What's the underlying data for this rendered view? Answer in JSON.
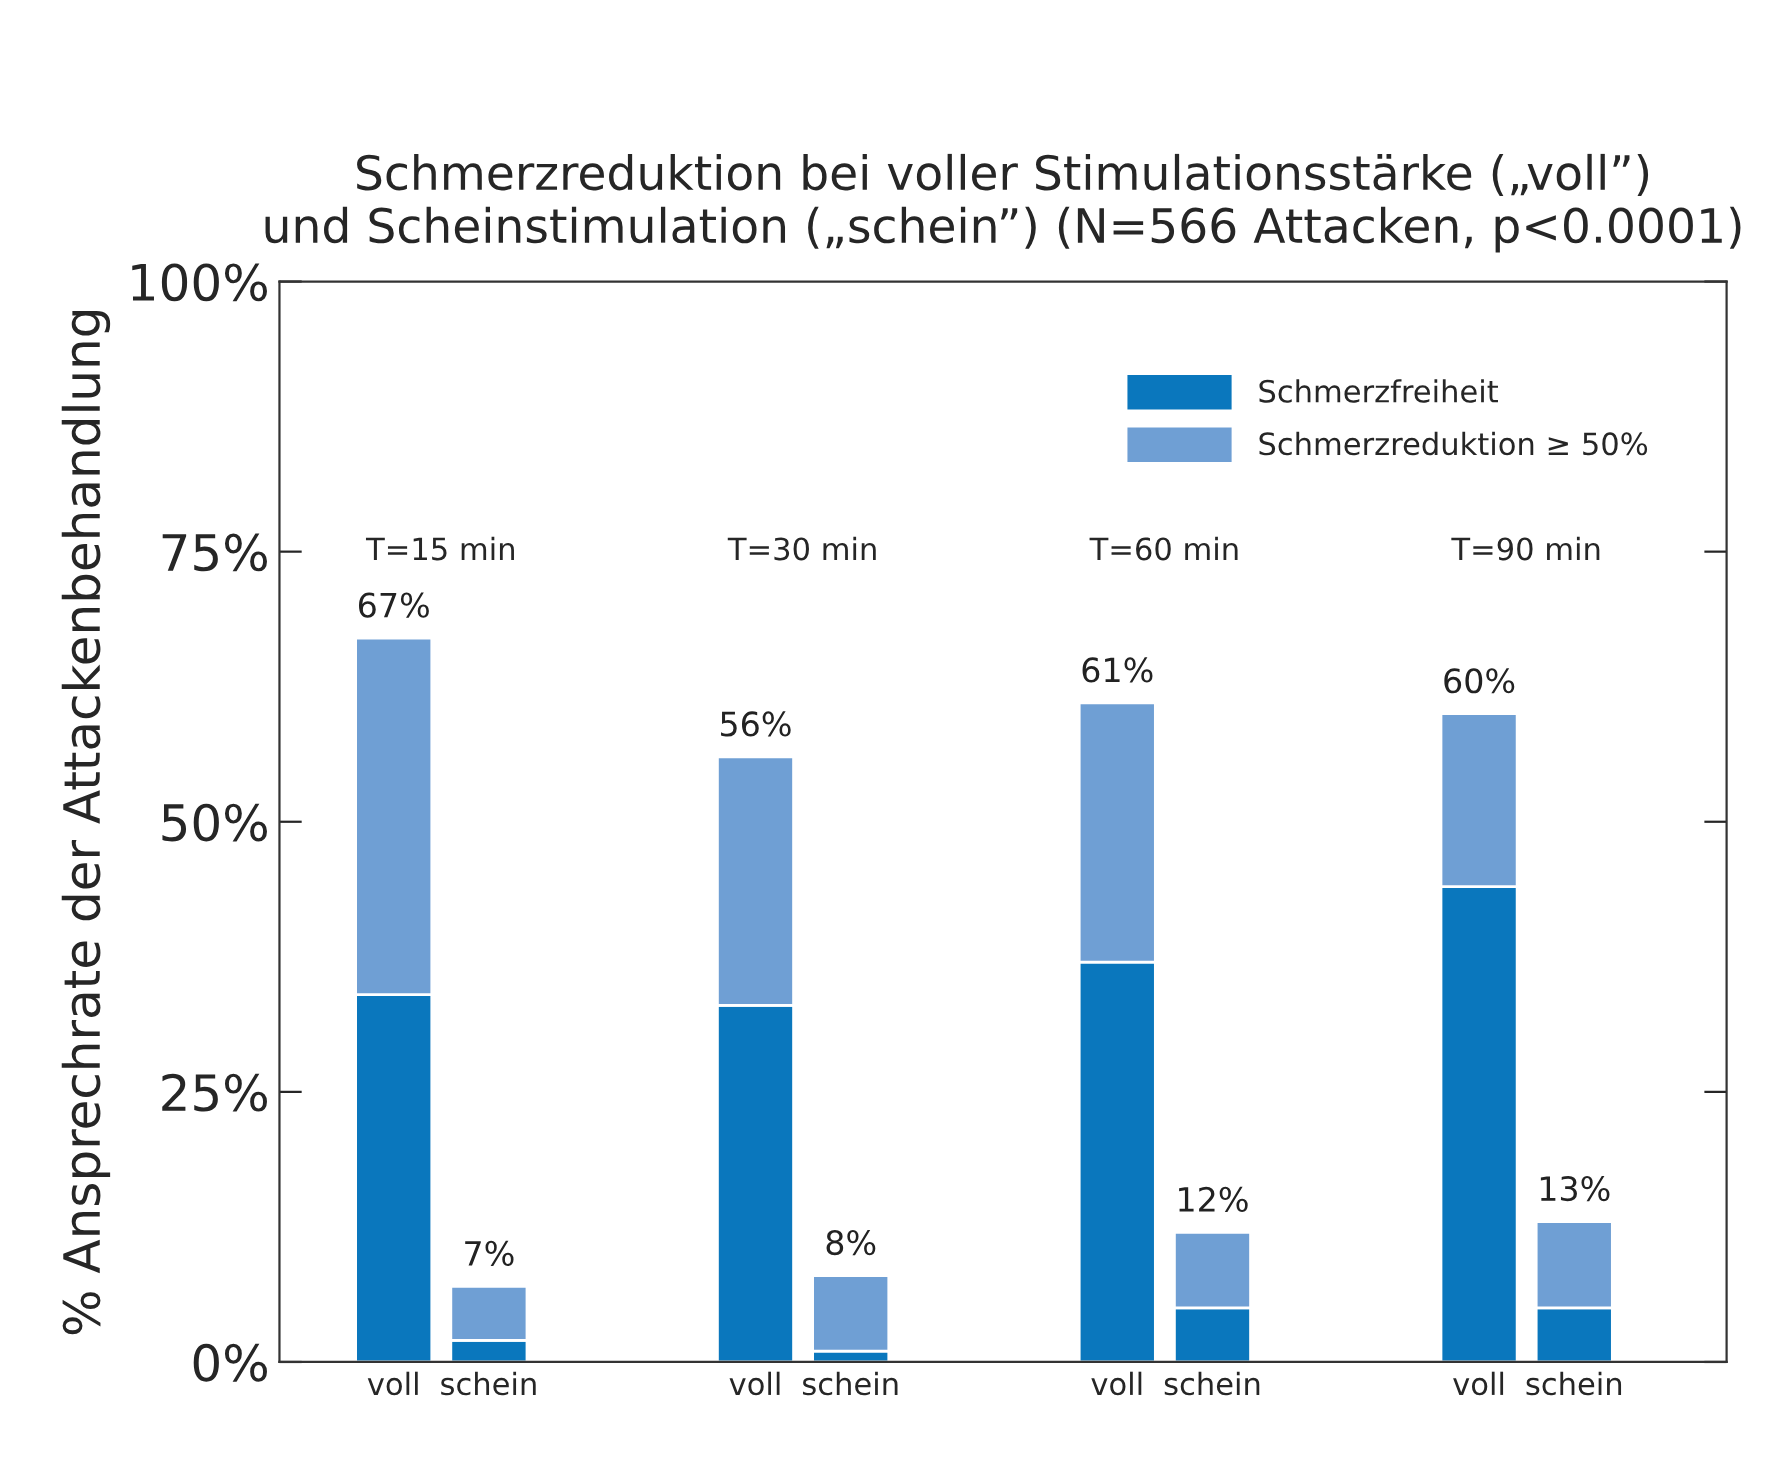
{
  "chart_data": {
    "type": "bar",
    "stacked": true,
    "title": "Schmerzreduktion bei voller Stimulationsstärke („voll”)\nund Scheinstimulation („schein”) (N=566 Attacken, p<0.0001)",
    "ylabel": "% Ansprechrate der Attackenbehandlung",
    "categories": [
      "voll",
      "schein",
      "voll",
      "schein",
      "voll",
      "schein",
      "voll",
      "schein"
    ],
    "series": [
      {
        "name": "Schmerzfreiheit",
        "color": "#0a77bd",
        "values": [
          34,
          2,
          33,
          1,
          37,
          5,
          44,
          5
        ]
      },
      {
        "name": "Schmerzreduktion ≥ 50%",
        "color": "#6f9fd4",
        "values": [
          33,
          5,
          23,
          7,
          24,
          7,
          16,
          8
        ]
      }
    ],
    "totals": [
      "67%",
      "7%",
      "56%",
      "8%",
      "61%",
      "12%",
      "60%",
      "13%"
    ],
    "annotations": [
      "T=15 min",
      "T=30 min",
      "T=60 min",
      "T=90 min"
    ],
    "ylim": [
      0,
      100
    ],
    "yticks": [
      {
        "value": 0,
        "label": "0%"
      },
      {
        "value": 25,
        "label": "25%"
      },
      {
        "value": 50,
        "label": "50%"
      },
      {
        "value": 75,
        "label": "75%"
      },
      {
        "value": 100,
        "label": "100%"
      }
    ],
    "grid": false,
    "legend": "top right"
  }
}
